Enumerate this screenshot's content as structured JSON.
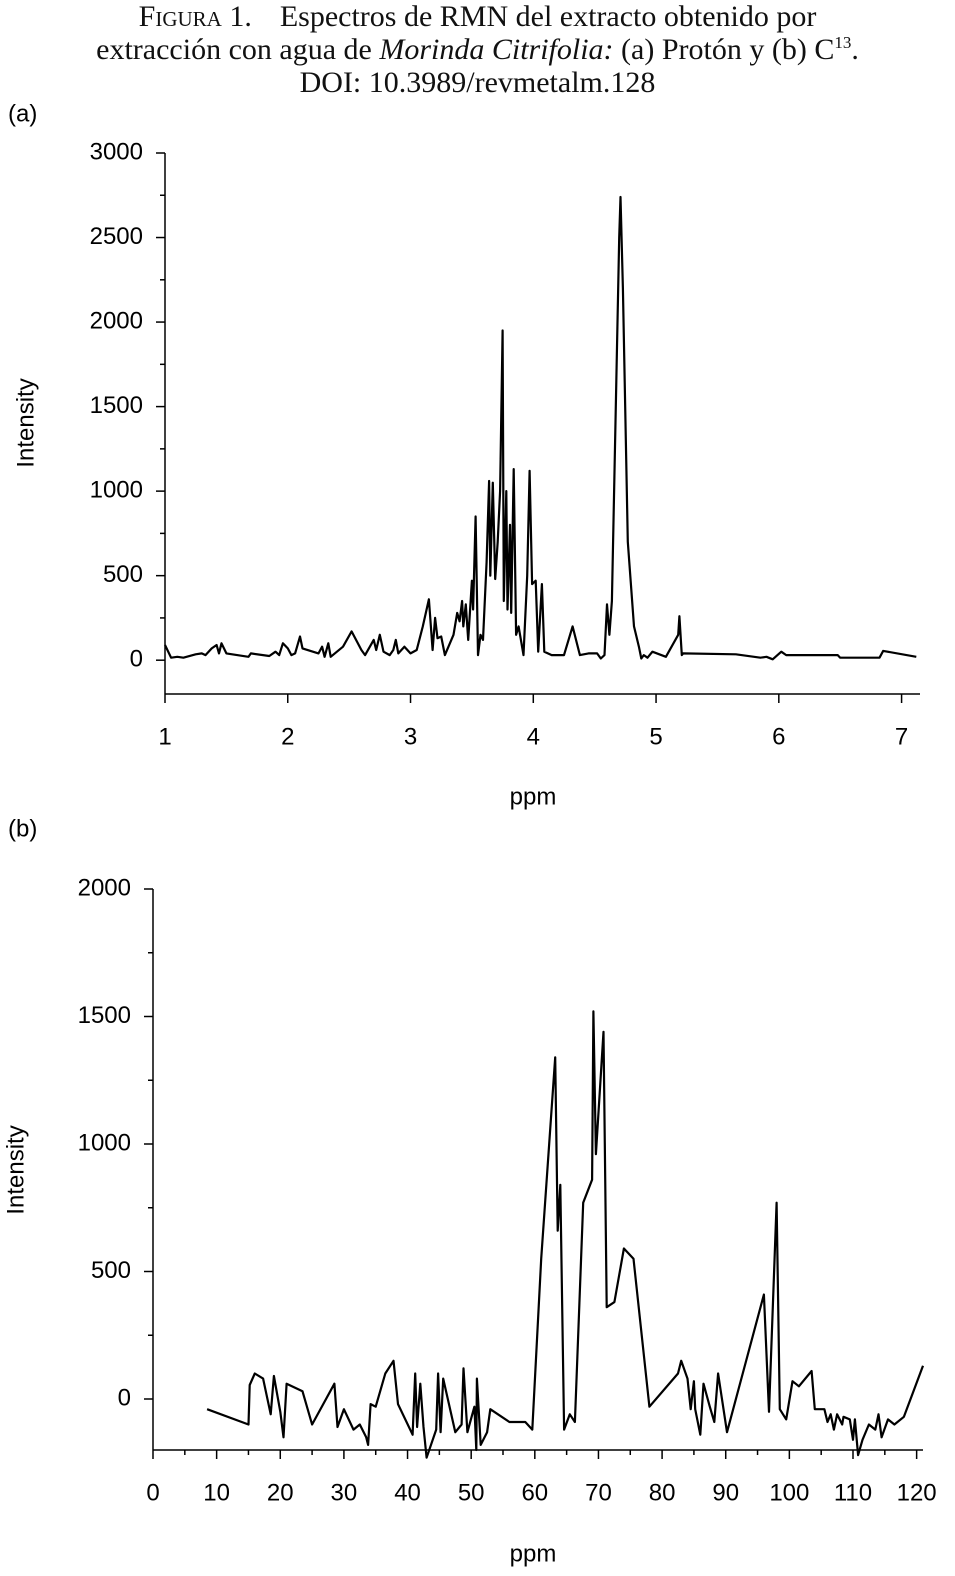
{
  "caption": {
    "label": "Figura 1.",
    "text_1": "Espectros de RMN del extracto obtenido por",
    "text_2": "extracción con agua de",
    "species": "Morinda Citrifolia:",
    "text_3": "(a) Protón y (b) C",
    "superscript": "13",
    "text_4": ".",
    "doi": "DOI: 10.3989/revmetalm.128"
  },
  "chart_data": [
    {
      "type": "line",
      "panel": "(a)",
      "x_label": "ppm",
      "y_label": "Intensity",
      "color": "#000000",
      "x": [
        1.0,
        1.05,
        1.1,
        1.15,
        1.25,
        1.3,
        1.33,
        1.38,
        1.42,
        1.44,
        1.46,
        1.5,
        1.68,
        1.7,
        1.85,
        1.9,
        1.93,
        1.96,
        2.0,
        2.03,
        2.06,
        2.1,
        2.12,
        2.25,
        2.28,
        2.3,
        2.33,
        2.35,
        2.45,
        2.52,
        2.6,
        2.63,
        2.7,
        2.72,
        2.75,
        2.78,
        2.83,
        2.86,
        2.88,
        2.9,
        2.95,
        3.0,
        3.05,
        3.1,
        3.15,
        3.18,
        3.2,
        3.22,
        3.25,
        3.28,
        3.35,
        3.38,
        3.4,
        3.42,
        3.43,
        3.45,
        3.47,
        3.5,
        3.51,
        3.53,
        3.55,
        3.57,
        3.59,
        3.62,
        3.64,
        3.65,
        3.67,
        3.69,
        3.71,
        3.73,
        3.75,
        3.76,
        3.78,
        3.79,
        3.81,
        3.82,
        3.84,
        3.86,
        3.88,
        3.92,
        3.95,
        3.97,
        3.99,
        4.02,
        4.04,
        4.07,
        4.09,
        4.15,
        4.25,
        4.32,
        4.38,
        4.45,
        4.52,
        4.55,
        4.58,
        4.6,
        4.62,
        4.64,
        4.7,
        4.71,
        4.73,
        4.77,
        4.82,
        4.86,
        4.88,
        4.9,
        4.93,
        4.97,
        5.08,
        5.18,
        5.19,
        5.21,
        5.22,
        5.65,
        5.85,
        5.9,
        5.95,
        6.02,
        6.06,
        6.48,
        6.5,
        6.82,
        6.85,
        7.12
      ],
      "values": [
        90,
        15,
        20,
        15,
        35,
        40,
        30,
        70,
        90,
        40,
        100,
        40,
        20,
        40,
        25,
        50,
        30,
        100,
        70,
        30,
        40,
        140,
        70,
        40,
        80,
        20,
        100,
        20,
        80,
        170,
        60,
        30,
        120,
        60,
        150,
        50,
        30,
        60,
        120,
        40,
        80,
        40,
        60,
        200,
        360,
        60,
        250,
        130,
        140,
        30,
        150,
        280,
        230,
        350,
        200,
        330,
        120,
        470,
        300,
        850,
        30,
        150,
        120,
        580,
        1060,
        500,
        1050,
        480,
        700,
        1000,
        1950,
        350,
        1000,
        300,
        800,
        280,
        1130,
        150,
        200,
        30,
        500,
        1120,
        450,
        470,
        50,
        450,
        50,
        30,
        30,
        200,
        30,
        40,
        40,
        10,
        30,
        330,
        150,
        350,
        2500,
        2740,
        2200,
        700,
        200,
        80,
        10,
        30,
        15,
        50,
        20,
        150,
        260,
        30,
        40,
        35,
        15,
        20,
        5,
        50,
        30,
        30,
        15,
        15,
        55,
        20
      ],
      "xlim": [
        1,
        7.15
      ],
      "ylim": [
        -200,
        3000
      ],
      "xticks": [
        1,
        2,
        3,
        4,
        5,
        6,
        7
      ],
      "yticks": [
        0,
        500,
        1000,
        1500,
        2000,
        2500,
        3000
      ],
      "xminorticks": [],
      "yminorticks": [
        250,
        750,
        1250,
        1750,
        2250,
        2750
      ]
    },
    {
      "type": "line",
      "panel": "(b)",
      "x_label": "ppm",
      "y_label": "Intensity",
      "color": "#000000",
      "x": [
        8.5,
        15,
        15.2,
        16,
        17.3,
        18.5,
        19,
        20,
        20.5,
        21,
        23.5,
        25,
        28.5,
        29,
        30,
        31.5,
        32.5,
        33.5,
        33.8,
        34.2,
        35,
        36.5,
        37.8,
        38.5,
        40.8,
        41.2,
        41.5,
        42,
        42.5,
        43,
        44.5,
        44.8,
        45.2,
        45.6,
        47.5,
        48.5,
        48.8,
        49.4,
        50.5,
        50.8,
        50.9,
        51.5,
        52.5,
        53,
        56,
        58.5,
        59.6,
        61,
        63.2,
        63.6,
        64,
        64.6,
        65.5,
        66.3,
        67.6,
        69,
        69.2,
        69.6,
        70.8,
        71.3,
        72.5,
        74,
        75.5,
        78,
        82.5,
        83,
        84,
        84.5,
        85,
        85.2,
        86,
        86.5,
        87.5,
        88.2,
        88.8,
        90.2,
        96,
        96.8,
        98,
        98.5,
        99.5,
        100.5,
        101.5,
        103.5,
        104,
        105.5,
        106,
        106.5,
        107,
        107.5,
        108.3,
        108.5,
        109.5,
        110,
        110.3,
        110.8,
        111.5,
        112.5,
        113.5,
        114,
        114.5,
        115.5,
        116.5,
        118,
        121
      ],
      "values": [
        -40,
        -100,
        55,
        100,
        80,
        -60,
        90,
        -50,
        -150,
        60,
        30,
        -100,
        60,
        -110,
        -40,
        -120,
        -100,
        -150,
        -180,
        -20,
        -30,
        100,
        150,
        -20,
        -140,
        100,
        -110,
        60,
        -110,
        -230,
        -120,
        100,
        -130,
        80,
        -130,
        -100,
        120,
        -130,
        -30,
        -200,
        80,
        -180,
        -130,
        -40,
        -90,
        -90,
        -120,
        550,
        1340,
        660,
        840,
        -120,
        -60,
        -90,
        770,
        860,
        1520,
        960,
        1440,
        360,
        380,
        590,
        550,
        -30,
        100,
        150,
        80,
        -40,
        70,
        -40,
        -140,
        60,
        -30,
        -90,
        100,
        -130,
        410,
        -50,
        770,
        -40,
        -80,
        70,
        50,
        110,
        -40,
        -40,
        -90,
        -60,
        -120,
        -60,
        -100,
        -70,
        -80,
        -160,
        -80,
        -220,
        -160,
        -100,
        -120,
        -60,
        -150,
        -80,
        -100,
        -70,
        130
      ],
      "xlim": [
        0,
        121
      ],
      "ylim": [
        -200,
        2000
      ],
      "xticks": [
        0,
        10,
        20,
        30,
        40,
        50,
        60,
        70,
        80,
        90,
        100,
        110,
        120
      ],
      "yticks": [
        0,
        500,
        1000,
        1500,
        2000
      ],
      "xminorticks": [
        5,
        15,
        25,
        35,
        45,
        55,
        65,
        75,
        85,
        95,
        105,
        115
      ],
      "yminorticks": [
        250,
        750,
        1250,
        1750
      ]
    }
  ]
}
